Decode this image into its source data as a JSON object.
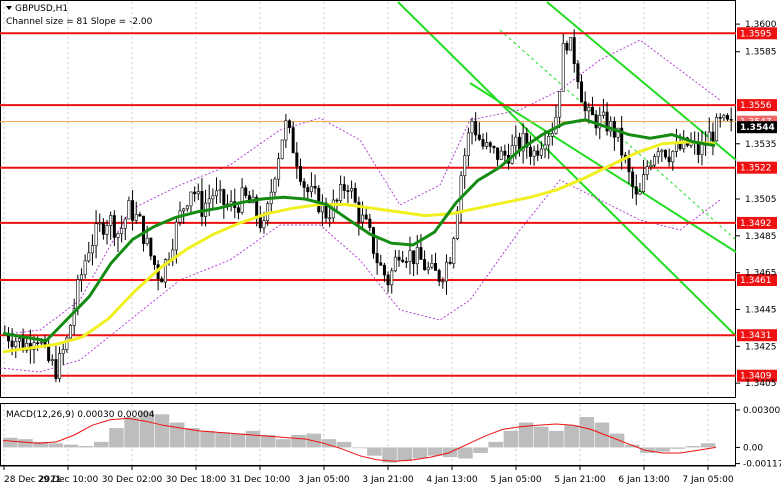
{
  "chart_data": {
    "type": "candlestick",
    "title": "GBPUSD,H1",
    "subtitle": "Channel size = 81 Slope = -2.00",
    "x_tick_labels": [
      "28 Dec 2021",
      "29 Dec 10:00",
      "30 Dec 02:00",
      "30 Dec 18:00",
      "31 Dec 10:00",
      "3 Jan 05:00",
      "3 Jan 21:00",
      "4 Jan 13:00",
      "5 Jan 05:00",
      "5 Jan 21:00",
      "6 Jan 13:00",
      "7 Jan 05:00"
    ],
    "y_tick_labels": [
      1.36,
      1.3585,
      1.3535,
      1.3505,
      1.3485,
      1.3465,
      1.3445,
      1.3425,
      1.3405
    ],
    "ylim": [
      1.3398,
      1.3612
    ],
    "levels": [
      {
        "label": "1.3595",
        "value": 1.3595
      },
      {
        "label": "1.3556",
        "value": 1.3556
      },
      {
        "label": "1.3522",
        "value": 1.3522
      },
      {
        "label": "1.3492",
        "value": 1.3492
      },
      {
        "label": "1.3461",
        "value": 1.3461
      },
      {
        "label": "1.3431",
        "value": 1.3431
      },
      {
        "label": "1.3409",
        "value": 1.3409
      }
    ],
    "current_price_label": "1.3544",
    "current_price": 1.3544,
    "hidden_label": "1.3547",
    "hidden_value": 1.3547,
    "price_path": [
      1.3432,
      1.3429,
      1.3425,
      1.3433,
      1.3418,
      1.3412,
      1.3428,
      1.3455,
      1.3478,
      1.3488,
      1.3495,
      1.3486,
      1.35,
      1.3492,
      1.3475,
      1.3462,
      1.348,
      1.3498,
      1.3512,
      1.35,
      1.3508,
      1.3503,
      1.35,
      1.3506,
      1.35,
      1.3488,
      1.352,
      1.3546,
      1.353,
      1.351,
      1.3505,
      1.3497,
      1.3503,
      1.3515,
      1.3498,
      1.3488,
      1.347,
      1.346,
      1.3478,
      1.3475,
      1.3472,
      1.3465,
      1.3463,
      1.3476,
      1.352,
      1.3548,
      1.3534,
      1.353,
      1.3528,
      1.3532,
      1.3536,
      1.353,
      1.354,
      1.3545,
      1.3594,
      1.358,
      1.355,
      1.3548,
      1.3546,
      1.354,
      1.352,
      1.3502,
      1.3525,
      1.3535,
      1.353,
      1.3532,
      1.3535,
      1.353,
      1.354,
      1.3546,
      1.3544
    ],
    "ma_green": [
      1.3432,
      1.343,
      1.3428,
      1.344,
      1.3452,
      1.347,
      1.3483,
      1.349,
      1.3495,
      1.3498,
      1.35,
      1.3503,
      1.3505,
      1.3506,
      1.3505,
      1.3502,
      1.3494,
      1.3486,
      1.3481,
      1.348,
      1.3487,
      1.3503,
      1.3515,
      1.3522,
      1.3532,
      1.354,
      1.3546,
      1.3548,
      1.3544,
      1.354,
      1.3538,
      1.354,
      1.3536,
      1.3534
    ],
    "ma_yellow": [
      1.3422,
      1.3424,
      1.3426,
      1.343,
      1.344,
      1.3455,
      1.3468,
      1.3478,
      1.3486,
      1.3492,
      1.3497,
      1.35,
      1.3502,
      1.3502,
      1.35,
      1.3498,
      1.3496,
      1.3497,
      1.35,
      1.3503,
      1.3506,
      1.351,
      1.3516,
      1.3523,
      1.353,
      1.3535,
      1.3536,
      1.3535
    ],
    "macd": {
      "label": "MACD(12,26,9) 0.00030 0.00004",
      "y_tick_labels": [
        "0.00300",
        "0.00",
        "-0.00117"
      ],
      "histogram": [
        0.0007,
        0.0006,
        0.0004,
        0.0003,
        0.0002,
        0.0001,
        0.0004,
        0.0014,
        0.0022,
        0.0026,
        0.0024,
        0.0018,
        0.0014,
        0.0012,
        0.0011,
        0.001,
        0.0012,
        0.0009,
        0.0006,
        0.0009,
        0.001,
        0.0006,
        0.0004,
        0.0,
        -0.0006,
        -0.0011,
        -0.001,
        -0.0008,
        -0.0006,
        -0.0007,
        -0.0008,
        -0.0004,
        0.0004,
        0.0012,
        0.0018,
        0.0015,
        0.0012,
        0.0016,
        0.0022,
        0.0018,
        0.001,
        0.0002,
        -0.0004,
        -0.0003,
        -0.0001,
        0.0001,
        0.0003
      ],
      "signal": [
        0.0005,
        0.0004,
        0.0003,
        0.0004,
        0.0009,
        0.0016,
        0.002,
        0.0021,
        0.0019,
        0.0016,
        0.0014,
        0.0012,
        0.0011,
        0.001,
        0.0009,
        0.0008,
        0.0007,
        0.0006,
        0.0003,
        -0.0001,
        -0.0006,
        -0.0009,
        -0.001,
        -0.0009,
        -0.0007,
        -0.0004,
        0.0002,
        0.0008,
        0.0013,
        0.0015,
        0.0016,
        0.0017,
        0.0016,
        0.0013,
        0.0008,
        0.0003,
        -0.0002,
        -0.0004,
        -0.0004,
        -0.0002,
        0.0
      ],
      "ylim": [
        -0.0012,
        0.003
      ]
    }
  }
}
